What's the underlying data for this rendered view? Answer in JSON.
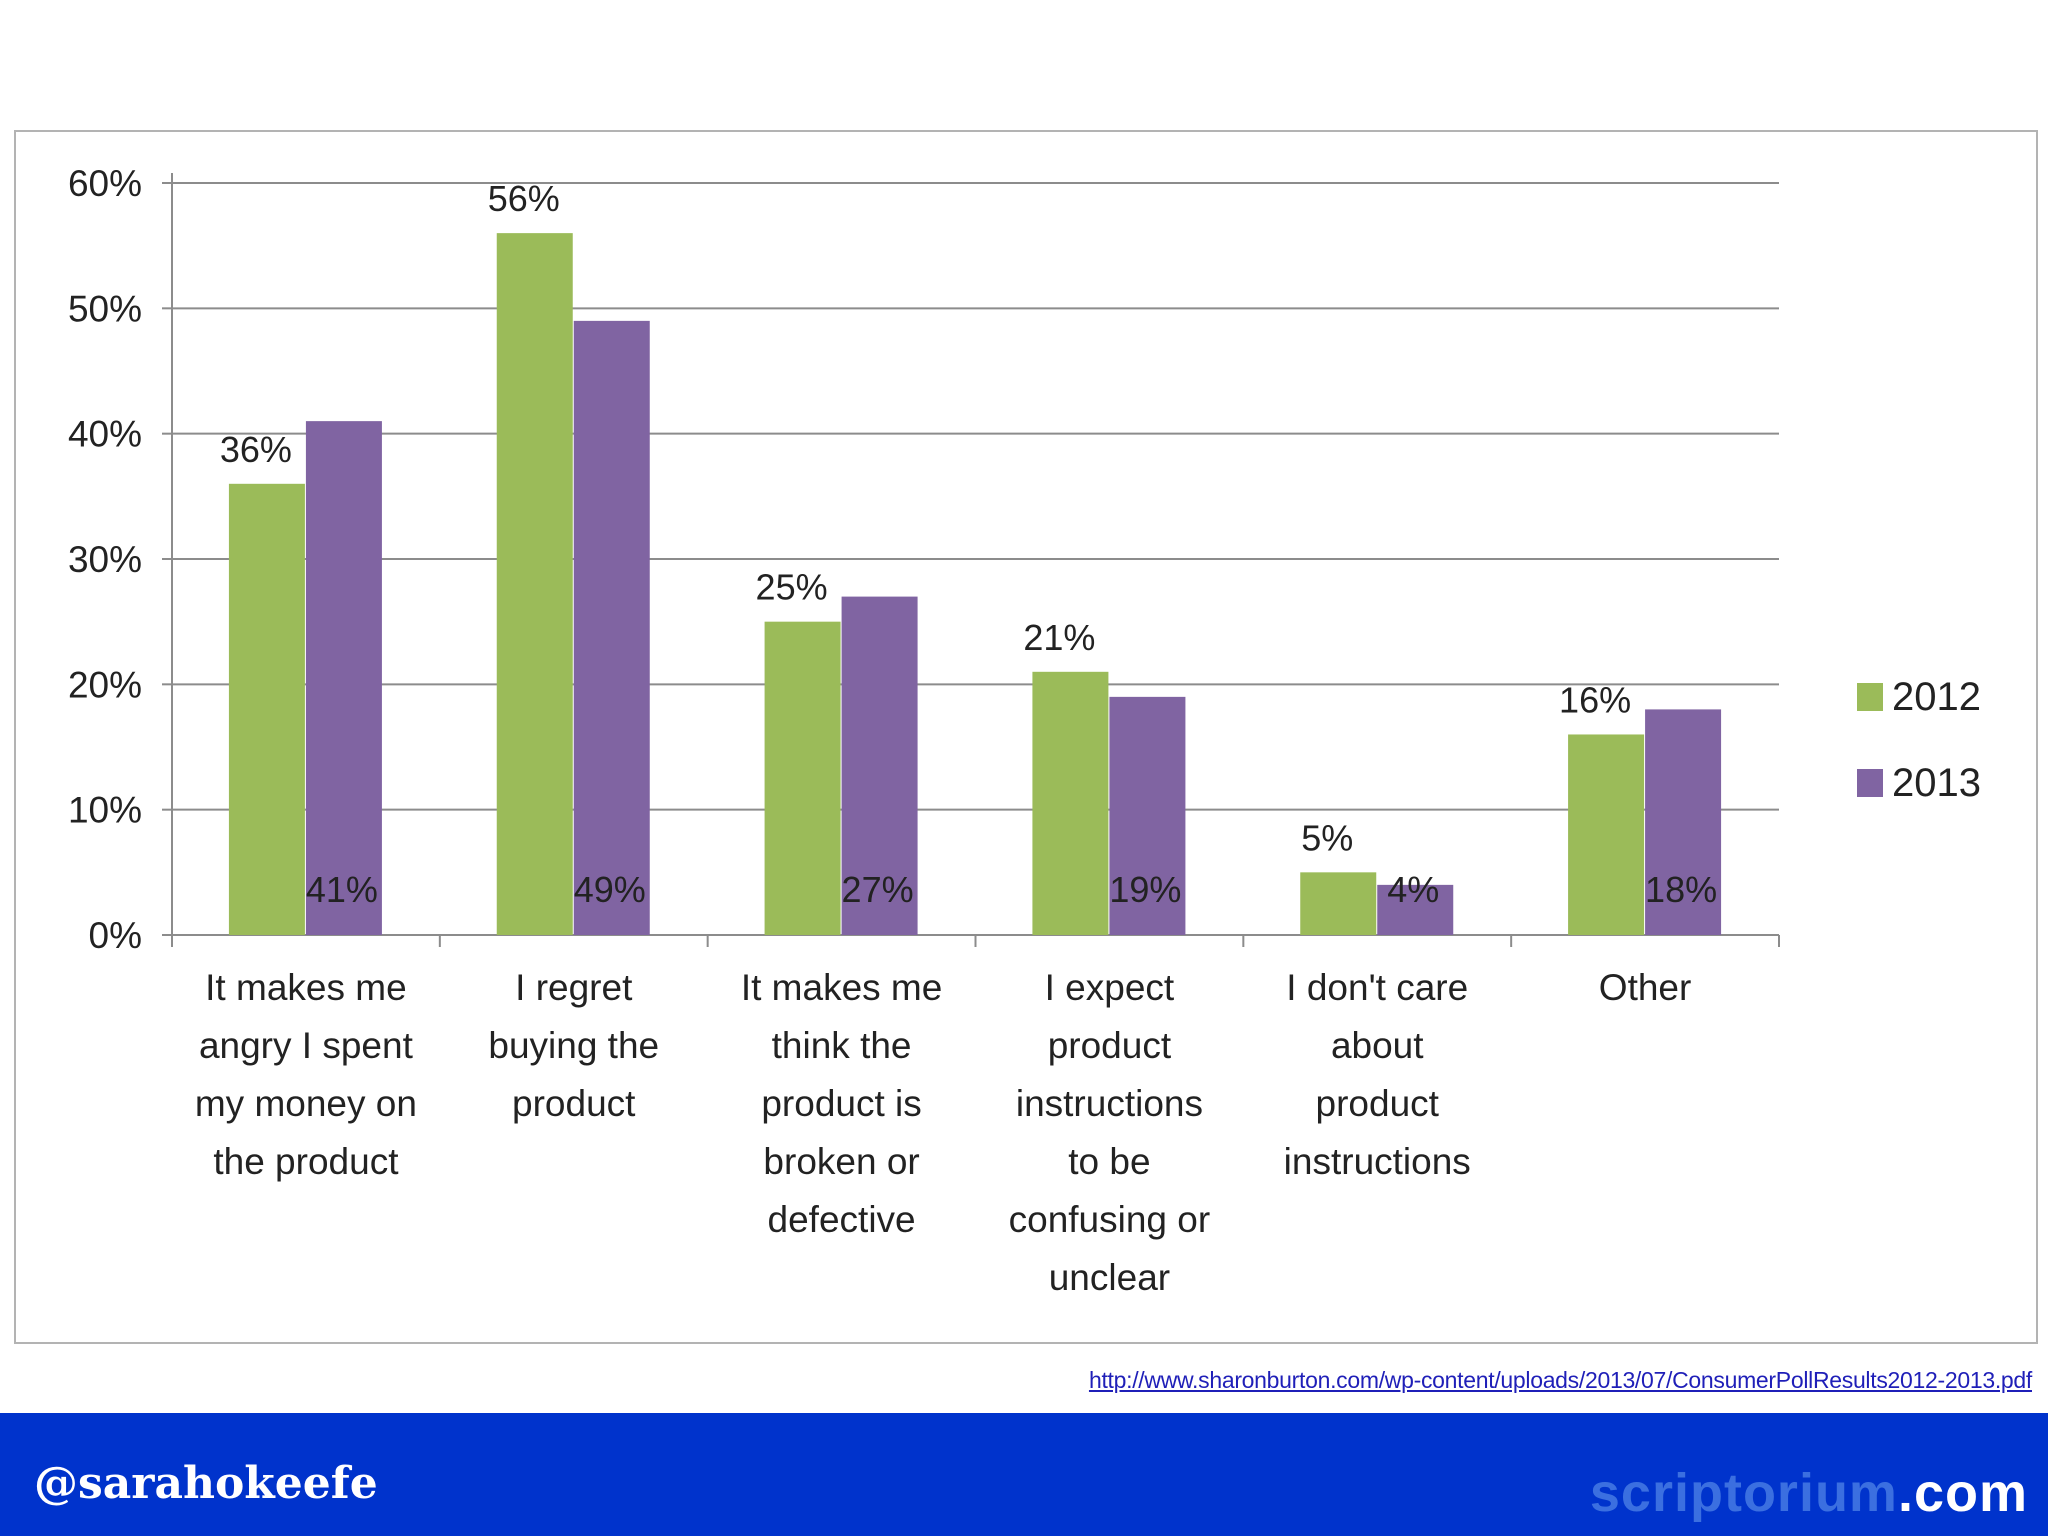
{
  "chart_data": {
    "type": "bar",
    "categories": [
      [
        "It makes me",
        "angry I spent",
        "my money on",
        "the product"
      ],
      [
        "I regret",
        "buying the",
        "product"
      ],
      [
        "It makes me",
        "think the",
        "product is",
        "broken or",
        "defective"
      ],
      [
        "I expect",
        "product",
        "instructions",
        "to be",
        "confusing or",
        "unclear"
      ],
      [
        "I don't care",
        "about",
        "product",
        "instructions"
      ],
      [
        "Other"
      ]
    ],
    "series": [
      {
        "name": "2012",
        "color": "#9bbb59",
        "values": [
          36,
          56,
          25,
          21,
          5,
          16
        ],
        "labels": [
          "36%",
          "56%",
          "25%",
          "21%",
          "5%",
          "16%"
        ]
      },
      {
        "name": "2013",
        "color": "#8064a2",
        "values": [
          41,
          49,
          27,
          19,
          4,
          18
        ],
        "labels": [
          "41%",
          "49%",
          "27%",
          "19%",
          "4%",
          "18%"
        ]
      }
    ],
    "yticks": [
      "0%",
      "10%",
      "20%",
      "30%",
      "40%",
      "50%",
      "60%"
    ],
    "ylim": [
      0,
      60
    ],
    "grid": true,
    "legend": "right"
  },
  "source_url": "http://www.sharonburton.com/wp-content/uploads/2013/07/ConsumerPollResults2012-2013.pdf",
  "footer": {
    "handle": "@sarahokeefe",
    "brand_part1": "scriptorium",
    "brand_part2": ".com"
  }
}
